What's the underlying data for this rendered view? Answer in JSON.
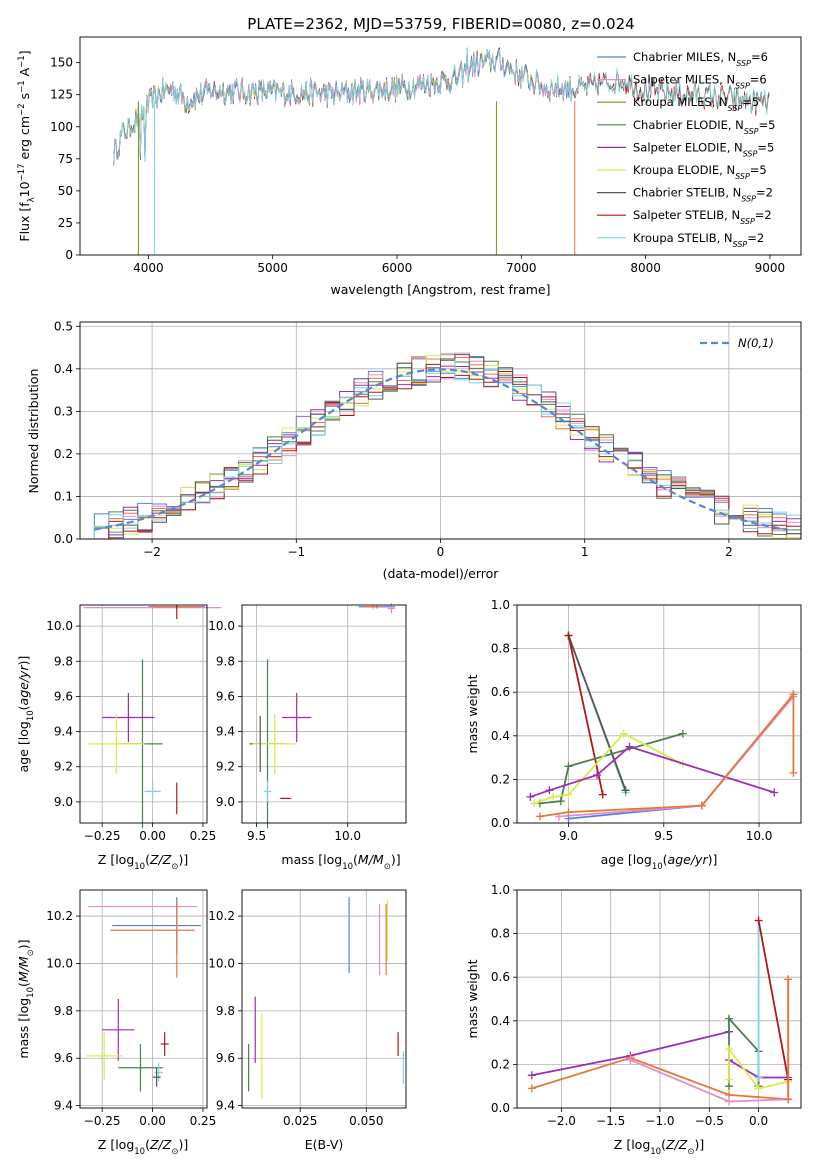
{
  "title": "PLATE=2362, MJD=53759, FIBERID=0080, z=0.024",
  "colors": {
    "Chabrier MILES": "#5b7fd9",
    "Salpeter MILES": "#e58ccc",
    "Kroupa MILES": "#8a8a1a",
    "Chabrier ELODIE": "#4f7f4f",
    "Salpeter ELODIE": "#9a2fb5",
    "Kroupa ELODIE": "#d8ec4a",
    "Chabrier STELIB": "#555555",
    "Salpeter STELIB": "#b01818",
    "Kroupa STELIB": "#7fd6d9",
    "orange": "#e8773a",
    "normal": "#5588d0"
  },
  "chart_data": [
    {
      "id": "spectrum",
      "type": "line",
      "xlabel": "wavelength [Angstrom, rest frame]",
      "ylabel": "Flux [f_λ10^{-17} erg cm^{-2} s^{-1} A^{-1}]",
      "xlim": [
        3450,
        9250
      ],
      "ylim": [
        0,
        170
      ],
      "xticks": [
        4000,
        5000,
        6000,
        7000,
        8000,
        9000
      ],
      "yticks": [
        0,
        25,
        50,
        75,
        100,
        125,
        150
      ],
      "grid": false,
      "legend_position": "top-right",
      "series": [
        {
          "name": "Chabrier MILES, N_SSP=6"
        },
        {
          "name": "Salpeter MILES, N_SSP=6"
        },
        {
          "name": "Kroupa MILES, N_SSP=5"
        },
        {
          "name": "Chabrier ELODIE, N_SSP=5"
        },
        {
          "name": "Salpeter ELODIE, N_SSP=5"
        },
        {
          "name": "Kroupa ELODIE, N_SSP=5"
        },
        {
          "name": "Chabrier STELIB, N_SSP=2"
        },
        {
          "name": "Salpeter STELIB, N_SSP=2"
        },
        {
          "name": "Kroupa STELIB, N_SSP=2"
        }
      ],
      "continuum": {
        "x": [
          3720,
          3800,
          3900,
          4000,
          4100,
          4200,
          4300,
          4500,
          5000,
          5500,
          6000,
          6500,
          6600,
          6800,
          7000,
          7200,
          7500,
          7800,
          8000,
          8500,
          9000
        ],
        "y": [
          80,
          95,
          105,
          117,
          127,
          130,
          120,
          128,
          127,
          126,
          130,
          138,
          148,
          152,
          140,
          130,
          130,
          137,
          128,
          124,
          118
        ]
      }
    },
    {
      "id": "residuals",
      "type": "histogram",
      "xlabel": "(data-model)/error",
      "ylabel": "Normed distribution",
      "xlim": [
        -2.5,
        2.5
      ],
      "ylim": [
        0,
        0.51
      ],
      "xticks": [
        -2,
        -1,
        0,
        1,
        2
      ],
      "yticks": [
        0.0,
        0.1,
        0.2,
        0.3,
        0.4,
        0.5
      ],
      "grid": true,
      "legend_position": "top-right",
      "normal_label": "N(0,1)"
    },
    {
      "id": "age_vs_Z",
      "type": "errorbar",
      "xlabel": "Z [log10(Z/Z☉)]",
      "ylabel": "age [log10(age/yr)]",
      "xlim": [
        -0.36,
        0.27
      ],
      "ylim": [
        8.88,
        10.12
      ],
      "xticks": [
        -0.25,
        0.0,
        0.25
      ],
      "yticks": [
        9.0,
        9.2,
        9.4,
        9.6,
        9.8,
        10.0
      ],
      "grid": true,
      "points": [
        {
          "series": "Chabrier MILES",
          "x": 0.12,
          "y": 10.11,
          "xerr": 0.14,
          "yerr": 0.01
        },
        {
          "series": "Salpeter MILES",
          "x": 0.0,
          "y": 10.105,
          "xerr": 0.34,
          "yerr": 0.01
        },
        {
          "series": "orange",
          "x": 0.12,
          "y": 10.11,
          "xerr": 0.12,
          "yerr": 0.01
        },
        {
          "series": "Salpeter STELIB",
          "x": 0.12,
          "y": 10.08,
          "xerr": 0.0,
          "yerr": 0.04
        },
        {
          "series": "Chabrier ELODIE",
          "x": -0.05,
          "y": 9.33,
          "xerr": 0.1,
          "yerr": 0.48
        },
        {
          "series": "Salpeter ELODIE",
          "x": -0.12,
          "y": 9.48,
          "xerr": 0.13,
          "yerr": 0.14
        },
        {
          "series": "Kroupa ELODIE",
          "x": -0.18,
          "y": 9.33,
          "xerr": 0.14,
          "yerr": 0.17
        },
        {
          "series": "Kroupa STELIB",
          "x": 0.0,
          "y": 9.06,
          "xerr": 0.04,
          "yerr": 0.06
        },
        {
          "series": "Salpeter STELIB",
          "x": 0.12,
          "y": 9.02,
          "xerr": 0.0,
          "yerr": 0.09
        }
      ]
    },
    {
      "id": "age_vs_mass",
      "type": "errorbar",
      "xlabel": "mass [log10(M/M☉)]",
      "ylabel": "",
      "xlim": [
        9.42,
        10.32
      ],
      "ylim": [
        8.88,
        10.12
      ],
      "xticks": [
        9.5,
        10.0
      ],
      "yticks": [
        9.0,
        9.2,
        9.4,
        9.6,
        9.8,
        10.0
      ],
      "grid": true,
      "points": [
        {
          "series": "Chabrier MILES",
          "x": 10.16,
          "y": 10.11,
          "xerr": 0.1,
          "yerr": 0.01
        },
        {
          "series": "Salpeter MILES",
          "x": 10.24,
          "y": 10.1,
          "xerr": 0.02,
          "yerr": 0.03
        },
        {
          "series": "orange",
          "x": 10.14,
          "y": 10.11,
          "xerr": 0.05,
          "yerr": 0.01
        },
        {
          "series": "Chabrier ELODIE",
          "x": 9.56,
          "y": 9.33,
          "xerr": 0.1,
          "yerr": 0.48
        },
        {
          "series": "Salpeter ELODIE",
          "x": 9.72,
          "y": 9.48,
          "xerr": 0.08,
          "yerr": 0.14
        },
        {
          "series": "Kroupa ELODIE",
          "x": 9.6,
          "y": 9.33,
          "xerr": 0.12,
          "yerr": 0.17
        },
        {
          "series": "Chabrier STELIB",
          "x": 9.52,
          "y": 9.33,
          "xerr": 0.0,
          "yerr": 0.16
        },
        {
          "series": "Kroupa STELIB",
          "x": 9.56,
          "y": 9.06,
          "xerr": 0.02,
          "yerr": 0.06
        },
        {
          "series": "Salpeter STELIB",
          "x": 9.66,
          "y": 9.02,
          "xerr": 0.03,
          "yerr": 0.0
        }
      ]
    },
    {
      "id": "weight_vs_age",
      "type": "line",
      "xlabel": "age [log10(age/yr)]",
      "ylabel": "mass weight",
      "xlim": [
        8.73,
        10.22
      ],
      "ylim": [
        0.0,
        1.0
      ],
      "xticks": [
        9.0,
        9.5,
        10.0
      ],
      "yticks": [
        0.0,
        0.2,
        0.4,
        0.6,
        0.8,
        1.0
      ],
      "grid": true,
      "series": [
        {
          "series": "Kroupa STELIB",
          "x": [
            9.0,
            9.3
          ],
          "y": [
            0.86,
            0.14
          ]
        },
        {
          "series": "Chabrier STELIB",
          "x": [
            9.0,
            9.3
          ],
          "y": [
            0.86,
            0.15
          ]
        },
        {
          "series": "Salpeter STELIB",
          "x": [
            9.0,
            9.18
          ],
          "y": [
            0.86,
            0.13
          ]
        },
        {
          "series": "Chabrier ELODIE",
          "x": [
            8.85,
            8.96,
            9.0,
            9.6
          ],
          "y": [
            0.09,
            0.1,
            0.26,
            0.41
          ]
        },
        {
          "series": "Kroupa ELODIE",
          "x": [
            8.82,
            8.92,
            9.0,
            9.29,
            9.6
          ],
          "y": [
            0.09,
            0.12,
            0.13,
            0.41,
            0.27
          ]
        },
        {
          "series": "Salpeter ELODIE",
          "x": [
            8.8,
            8.9,
            9.15,
            9.32,
            10.08
          ],
          "y": [
            0.12,
            0.15,
            0.22,
            0.35,
            0.14
          ]
        },
        {
          "series": "Chabrier MILES",
          "x": [
            9.0,
            9.7,
            10.18
          ],
          "y": [
            0.02,
            0.08,
            0.59
          ]
        },
        {
          "series": "Salpeter MILES",
          "x": [
            8.95,
            9.7,
            10.18
          ],
          "y": [
            0.03,
            0.08,
            0.58
          ]
        },
        {
          "series": "orange",
          "x": [
            8.85,
            9.0,
            9.7,
            10.18,
            10.18
          ],
          "y": [
            0.03,
            0.05,
            0.08,
            0.59,
            0.23
          ]
        }
      ]
    },
    {
      "id": "mass_vs_Z",
      "type": "errorbar",
      "xlabel": "Z [log10(Z/Z☉)]",
      "ylabel": "mass [log10(M/M☉)]",
      "xlim": [
        -0.36,
        0.27
      ],
      "ylim": [
        9.39,
        10.31
      ],
      "xticks": [
        -0.25,
        0.0,
        0.25
      ],
      "yticks": [
        9.4,
        9.6,
        9.8,
        10.0,
        10.2
      ],
      "grid": true,
      "points": [
        {
          "series": "Salpeter MILES",
          "x": -0.05,
          "y": 10.24,
          "xerr": 0.27,
          "yerr": 0.0
        },
        {
          "series": "Chabrier MILES",
          "x": 0.02,
          "y": 10.16,
          "xerr": 0.22,
          "yerr": 0.0
        },
        {
          "series": "orange",
          "x": 0.0,
          "y": 10.14,
          "xerr": 0.21,
          "yerr": 0.0
        },
        {
          "series": "Chabrier MILES",
          "x": 0.12,
          "y": 10.16,
          "xerr": 0.0,
          "yerr": 0.12
        },
        {
          "series": "orange",
          "x": 0.12,
          "y": 10.1,
          "xerr": 0.0,
          "yerr": 0.16
        },
        {
          "series": "Salpeter ELODIE",
          "x": -0.17,
          "y": 9.72,
          "xerr": 0.08,
          "yerr": 0.13
        },
        {
          "series": "Salpeter STELIB",
          "x": 0.06,
          "y": 9.66,
          "xerr": 0.02,
          "yerr": 0.05
        },
        {
          "series": "Kroupa ELODIE",
          "x": -0.24,
          "y": 9.61,
          "xerr": 0.09,
          "yerr": 0.1
        },
        {
          "series": "Chabrier ELODIE",
          "x": -0.06,
          "y": 9.56,
          "xerr": 0.11,
          "yerr": 0.1
        },
        {
          "series": "Kroupa STELIB",
          "x": 0.03,
          "y": 9.54,
          "xerr": 0.02,
          "yerr": 0.04
        },
        {
          "series": "Chabrier STELIB",
          "x": 0.02,
          "y": 9.52,
          "xerr": 0.02,
          "yerr": 0.04
        }
      ]
    },
    {
      "id": "mass_vs_EBV",
      "type": "errorbar",
      "xlabel": "E(B-V)",
      "ylabel": "",
      "xlim": [
        0.003,
        0.065
      ],
      "ylim": [
        9.39,
        10.31
      ],
      "xticks": [
        0.025,
        0.05
      ],
      "yticks": [
        9.4,
        9.6,
        9.8,
        10.0,
        10.2
      ],
      "grid": true,
      "points": [
        {
          "series": "Chabrier MILES",
          "x": 0.0435,
          "y": 10.12,
          "xerr": 0.0,
          "yerr": 0.16
        },
        {
          "series": "Salpeter MILES",
          "x": 0.055,
          "y": 10.1,
          "xerr": 0.0,
          "yerr": 0.15
        },
        {
          "series": "Kroupa ELODIE",
          "x": 0.058,
          "y": 10.14,
          "xerr": 0.0,
          "yerr": 0.13
        },
        {
          "series": "orange",
          "x": 0.0575,
          "y": 10.1,
          "xerr": 0.0,
          "yerr": 0.15
        },
        {
          "series": "Salpeter ELODIE",
          "x": 0.008,
          "y": 9.72,
          "xerr": 0.0,
          "yerr": 0.14
        },
        {
          "series": "Kroupa ELODIE",
          "x": 0.0105,
          "y": 9.61,
          "xerr": 0.0,
          "yerr": 0.18
        },
        {
          "series": "Salpeter STELIB",
          "x": 0.062,
          "y": 9.66,
          "xerr": 0.0,
          "yerr": 0.05
        },
        {
          "series": "Chabrier ELODIE",
          "x": 0.0055,
          "y": 9.56,
          "xerr": 0.0,
          "yerr": 0.1
        },
        {
          "series": "Kroupa STELIB",
          "x": 0.064,
          "y": 9.56,
          "xerr": 0.0,
          "yerr": 0.07
        }
      ]
    },
    {
      "id": "weight_vs_Z",
      "type": "line",
      "xlabel": "Z [log10(Z/Z☉)]",
      "ylabel": "mass weight",
      "xlim": [
        -2.45,
        0.43
      ],
      "ylim": [
        0.0,
        1.0
      ],
      "xticks": [
        -2.0,
        -1.5,
        -1.0,
        -0.5,
        0.0
      ],
      "yticks": [
        0.0,
        0.2,
        0.4,
        0.6,
        0.8,
        1.0
      ],
      "grid": true,
      "series": [
        {
          "series": "Salpeter ELODIE",
          "x": [
            -2.3,
            -1.3,
            -0.3
          ],
          "y": [
            0.15,
            0.24,
            0.35
          ]
        },
        {
          "series": "Salpeter ELODIE",
          "x": [
            -0.3,
            0.0,
            0.3
          ],
          "y": [
            0.22,
            0.14,
            0.14
          ]
        },
        {
          "series": "orange",
          "x": [
            -2.3,
            -1.3,
            -0.3,
            0.3,
            0.3
          ],
          "y": [
            0.09,
            0.23,
            0.06,
            0.04,
            0.59
          ]
        },
        {
          "series": "Salpeter MILES",
          "x": [
            -1.3,
            -0.3,
            0.3
          ],
          "y": [
            0.22,
            0.03,
            0.04
          ]
        },
        {
          "series": "Chabrier ELODIE",
          "x": [
            -0.3,
            -0.3,
            0.0,
            0.0
          ],
          "y": [
            0.1,
            0.41,
            0.26,
            0.1
          ]
        },
        {
          "series": "Kroupa ELODIE",
          "x": [
            -0.3,
            -0.3,
            0.0,
            0.3
          ],
          "y": [
            0.13,
            0.27,
            0.09,
            0.12
          ]
        },
        {
          "series": "Kroupa STELIB",
          "x": [
            0.0,
            0.0
          ],
          "y": [
            0.86,
            0.14
          ]
        },
        {
          "series": "Salpeter STELIB",
          "x": [
            0.0,
            0.3
          ],
          "y": [
            0.86,
            0.13
          ]
        },
        {
          "series": "orange",
          "x": [
            0.3,
            0.3
          ],
          "y": [
            0.59,
            0.04
          ]
        }
      ]
    }
  ]
}
